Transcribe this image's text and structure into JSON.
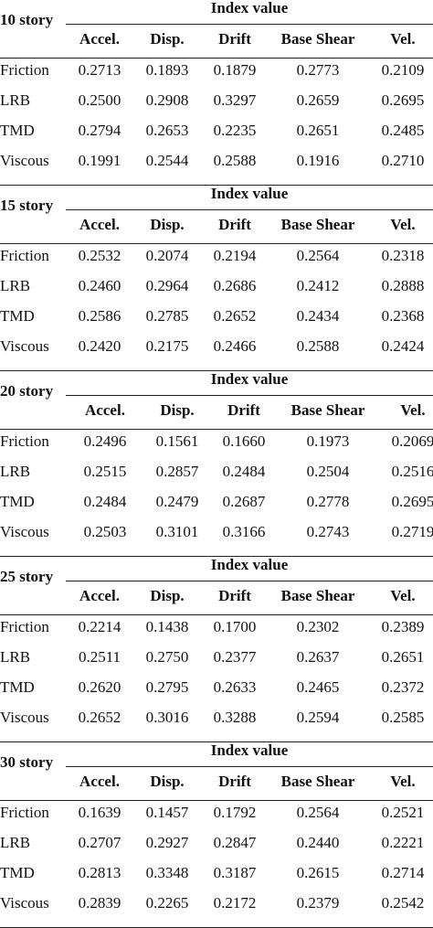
{
  "index_label": "Index value",
  "columns": [
    "Accel.",
    "Disp.",
    "Drift",
    "Base Shear",
    "Vel."
  ],
  "blocks": [
    {
      "story": "10 story",
      "rows": [
        {
          "label": "Friction",
          "values": [
            "0.2713",
            "0.1893",
            "0.1879",
            "0.2773",
            "0.2109"
          ]
        },
        {
          "label": "LRB",
          "values": [
            "0.2500",
            "0.2908",
            "0.3297",
            "0.2659",
            "0.2695"
          ]
        },
        {
          "label": "TMD",
          "values": [
            "0.2794",
            "0.2653",
            "0.2235",
            "0.2651",
            "0.2485"
          ]
        },
        {
          "label": "Viscous",
          "values": [
            "0.1991",
            "0.2544",
            "0.2588",
            "0.1916",
            "0.2710"
          ]
        }
      ]
    },
    {
      "story": "15 story",
      "rows": [
        {
          "label": "Friction",
          "values": [
            "0.2532",
            "0.2074",
            "0.2194",
            "0.2564",
            "0.2318"
          ]
        },
        {
          "label": "LRB",
          "values": [
            "0.2460",
            "0.2964",
            "0.2686",
            "0.2412",
            "0.2888"
          ]
        },
        {
          "label": "TMD",
          "values": [
            "0.2586",
            "0.2785",
            "0.2652",
            "0.2434",
            "0.2368"
          ]
        },
        {
          "label": "Viscous",
          "values": [
            "0.2420",
            "0.2175",
            "0.2466",
            "0.2588",
            "0.2424"
          ]
        }
      ]
    },
    {
      "story": "20 story",
      "rows": [
        {
          "label": "Friction",
          "values": [
            "0.2496",
            "0.1561",
            "0.1660",
            "0.1973",
            "0.2069"
          ]
        },
        {
          "label": "LRB",
          "values": [
            "0.2515",
            "0.2857",
            "0.2484",
            "0.2504",
            "0.2516"
          ]
        },
        {
          "label": "TMD",
          "values": [
            "0.2484",
            "0.2479",
            "0.2687",
            "0.2778",
            "0.2695"
          ]
        },
        {
          "label": "Viscous",
          "values": [
            "0.2503",
            "0.3101",
            "0.3166",
            "0.2743",
            "0.2719"
          ]
        }
      ]
    },
    {
      "story": "25 story",
      "rows": [
        {
          "label": "Friction",
          "values": [
            "0.2214",
            "0.1438",
            "0.1700",
            "0.2302",
            "0.2389"
          ]
        },
        {
          "label": "LRB",
          "values": [
            "0.2511",
            "0.2750",
            "0.2377",
            "0.2637",
            "0.2651"
          ]
        },
        {
          "label": "TMD",
          "values": [
            "0.2620",
            "0.2795",
            "0.2633",
            "0.2465",
            "0.2372"
          ]
        },
        {
          "label": "Viscous",
          "values": [
            "0.2652",
            "0.3016",
            "0.3288",
            "0.2594",
            "0.2585"
          ]
        }
      ]
    },
    {
      "story": "30 story",
      "rows": [
        {
          "label": "Friction",
          "values": [
            "0.1639",
            "0.1457",
            "0.1792",
            "0.2564",
            "0.2521"
          ]
        },
        {
          "label": "LRB",
          "values": [
            "0.2707",
            "0.2927",
            "0.2847",
            "0.2440",
            "0.2221"
          ]
        },
        {
          "label": "TMD",
          "values": [
            "0.2813",
            "0.3348",
            "0.3187",
            "0.2615",
            "0.2714"
          ]
        },
        {
          "label": "Viscous",
          "values": [
            "0.2839",
            "0.2265",
            "0.2172",
            "0.2379",
            "0.2542"
          ]
        }
      ]
    }
  ]
}
